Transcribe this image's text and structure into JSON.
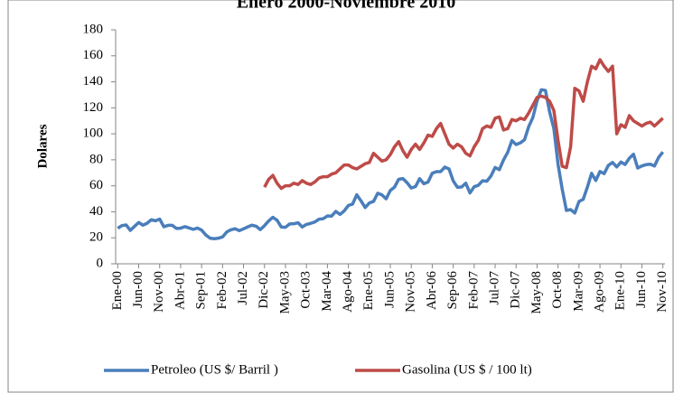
{
  "chart_data": {
    "type": "line",
    "title": "Enero 2000-Noviembre 2010",
    "y_label": "Dolares",
    "categories": [
      "Ene-00",
      null,
      null,
      null,
      null,
      "Jun-00",
      null,
      null,
      null,
      null,
      "Nov-00",
      null,
      null,
      null,
      null,
      "Abr-01",
      null,
      null,
      null,
      null,
      "Sep-01",
      null,
      null,
      null,
      null,
      "Feb-02",
      null,
      null,
      null,
      null,
      "Jul-02",
      null,
      null,
      null,
      null,
      "Dic-02",
      null,
      null,
      null,
      null,
      "May-03",
      null,
      null,
      null,
      null,
      "Oct-03",
      null,
      null,
      null,
      null,
      "Mar-04",
      null,
      null,
      null,
      null,
      "Ago-04",
      null,
      null,
      null,
      null,
      "Ene-05",
      null,
      null,
      null,
      null,
      "Jun-05",
      null,
      null,
      null,
      null,
      "Nov-05",
      null,
      null,
      null,
      null,
      "Abr-06",
      null,
      null,
      null,
      null,
      "Sep-06",
      null,
      null,
      null,
      null,
      "Feb-07",
      null,
      null,
      null,
      null,
      "Jul-07",
      null,
      null,
      null,
      null,
      "Dic-07",
      null,
      null,
      null,
      null,
      "May-08",
      null,
      null,
      null,
      null,
      "Oct-08",
      null,
      null,
      null,
      null,
      "Mar-09",
      null,
      null,
      null,
      null,
      "Ago-09",
      null,
      null,
      null,
      null,
      "Ene-10",
      null,
      null,
      null,
      null,
      "Jun-10",
      null,
      null,
      null,
      null,
      "Nov-10"
    ],
    "series": [
      {
        "name": "Petroleo (US $/ Barril )",
        "color": "#4a7ebb",
        "values": [
          27.3,
          29.4,
          29.9,
          25.7,
          28.8,
          31.8,
          29.7,
          31.2,
          33.9,
          33.1,
          34.4,
          28.5,
          29.6,
          29.6,
          27.2,
          27.4,
          28.6,
          27.6,
          26.5,
          27.5,
          25.9,
          22.2,
          19.7,
          19.3,
          19.7,
          20.7,
          24.5,
          26.2,
          27.0,
          25.5,
          26.9,
          28.4,
          29.7,
          28.9,
          26.3,
          29.4,
          33.0,
          35.8,
          33.5,
          28.3,
          28.1,
          30.7,
          30.8,
          31.6,
          28.3,
          30.3,
          31.1,
          32.2,
          34.3,
          34.7,
          36.8,
          36.7,
          40.3,
          38.0,
          40.7,
          44.9,
          45.9,
          53.1,
          48.5,
          43.3,
          46.8,
          48.0,
          54.3,
          53.0,
          50.0,
          56.4,
          59.0,
          65.0,
          65.6,
          62.4,
          58.3,
          59.4,
          65.5,
          61.6,
          62.9,
          69.7,
          70.9,
          70.9,
          74.4,
          73.0,
          63.8,
          58.9,
          59.1,
          62.0,
          54.5,
          59.3,
          60.4,
          63.9,
          63.5,
          67.5,
          74.1,
          72.4,
          79.9,
          85.8,
          94.8,
          91.7,
          93.0,
          95.4,
          105.5,
          112.6,
          125.4,
          133.9,
          133.4,
          116.7,
          104.1,
          76.6,
          57.3,
          41.1,
          41.7,
          39.1,
          47.9,
          49.6,
          59.0,
          69.6,
          64.1,
          71.0,
          69.4,
          75.7,
          78.0,
          74.5,
          78.3,
          76.4,
          81.2,
          84.3,
          73.7,
          75.3,
          76.3,
          76.6,
          75.2,
          81.9,
          86.0
        ]
      },
      {
        "name": "Gasolina (US $ / 100 lt)",
        "color": "#be4b48",
        "values": [
          null,
          null,
          null,
          null,
          null,
          null,
          null,
          null,
          null,
          null,
          null,
          null,
          null,
          null,
          null,
          null,
          null,
          null,
          null,
          null,
          null,
          null,
          null,
          null,
          null,
          null,
          null,
          null,
          null,
          null,
          null,
          null,
          null,
          null,
          null,
          59,
          65,
          68,
          62,
          58,
          60,
          60,
          62,
          61,
          64,
          62,
          61,
          63,
          66,
          67,
          67,
          69,
          70,
          73,
          76,
          76,
          74,
          73,
          75,
          77,
          78,
          85,
          82,
          79,
          80,
          84,
          90,
          94,
          87,
          82,
          88,
          92,
          88,
          93,
          99,
          98,
          104,
          108,
          100,
          92,
          89,
          92,
          90,
          85,
          83,
          90,
          95,
          104,
          106,
          105,
          112,
          113,
          103,
          104,
          111,
          110,
          112,
          111,
          116,
          122,
          128,
          129,
          128,
          125,
          118,
          95,
          75,
          74,
          90,
          135,
          133,
          125,
          140,
          152,
          150,
          157,
          152,
          148,
          152,
          100,
          107,
          105,
          114,
          110,
          108,
          106,
          108,
          109,
          106,
          109,
          112
        ]
      }
    ],
    "ylim": [
      0,
      180
    ],
    "yticks": [
      0,
      20,
      40,
      60,
      80,
      100,
      120,
      140,
      160,
      180
    ],
    "grid": false,
    "legend": "bottom"
  }
}
